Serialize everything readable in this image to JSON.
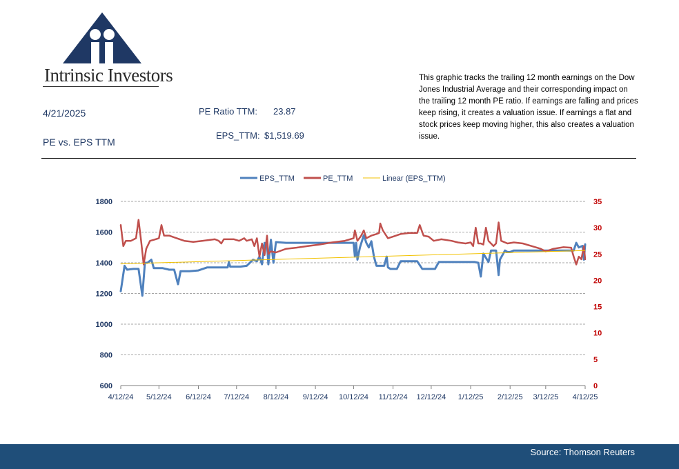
{
  "header": {
    "logo_text": "Intrinsic Investors",
    "date": "4/21/2025",
    "subtitle": "PE vs. EPS TTM",
    "pe_label": "PE Ratio TTM:",
    "pe_value": "23.87",
    "eps_label": "EPS_TTM:",
    "eps_value": "$1,519.69",
    "description": "This graphic tracks the trailing 12 month earnings on the Dow Jones Industrial Average and their corresponding impact on the trailing 12 month PE ratio.  If earnings are falling and prices keep rising, it creates a valuation issue.  If earnings a flat and stock prices keep moving higher, this also creates a valuation issue."
  },
  "footer": {
    "source": "Source: Thomson Reuters"
  },
  "colors": {
    "eps": "#4f81bd",
    "pe": "#c0504d",
    "trend": "#f2c200",
    "axis_left": "#1f3864",
    "axis_right": "#c00000",
    "footer": "#1f4e79"
  },
  "chart_data": {
    "type": "line",
    "x_ticks": [
      "4/12/24",
      "5/12/24",
      "6/12/24",
      "7/12/24",
      "8/12/24",
      "9/12/24",
      "10/12/24",
      "11/12/24",
      "12/12/24",
      "1/12/25",
      "2/12/25",
      "3/12/25",
      "4/12/25"
    ],
    "x_range": [
      "4/12/24",
      "4/12/25"
    ],
    "y_left": {
      "min": 600,
      "max": 1800,
      "ticks": [
        600,
        800,
        1000,
        1200,
        1400,
        1600,
        1800
      ]
    },
    "y_right": {
      "min": 0,
      "max": 35,
      "ticks": [
        0,
        5,
        10,
        15,
        20,
        25,
        30,
        35
      ]
    },
    "grid": "horizontal dashed",
    "legend_position": "top",
    "legend": [
      "EPS_TTM",
      "PE_TTM",
      "Linear (EPS_TTM)"
    ],
    "series": [
      {
        "name": "EPS_TTM",
        "axis": "left",
        "points": [
          [
            "4/12/24",
            1215
          ],
          [
            "4/15/24",
            1380
          ],
          [
            "4/17/24",
            1355
          ],
          [
            "4/22/24",
            1360
          ],
          [
            "4/26/24",
            1360
          ],
          [
            "4/29/24",
            1185
          ],
          [
            "5/1/24",
            1400
          ],
          [
            "5/3/24",
            1400
          ],
          [
            "5/6/24",
            1420
          ],
          [
            "5/8/24",
            1365
          ],
          [
            "5/15/24",
            1365
          ],
          [
            "5/20/24",
            1355
          ],
          [
            "5/24/24",
            1355
          ],
          [
            "5/27/24",
            1260
          ],
          [
            "5/29/24",
            1345
          ],
          [
            "6/5/24",
            1345
          ],
          [
            "6/12/24",
            1350
          ],
          [
            "6/19/24",
            1370
          ],
          [
            "6/28/24",
            1370
          ],
          [
            "7/5/24",
            1370
          ],
          [
            "7/6/24",
            1405
          ],
          [
            "7/7/24",
            1375
          ],
          [
            "7/15/24",
            1375
          ],
          [
            "7/20/24",
            1380
          ],
          [
            "7/25/24",
            1420
          ],
          [
            "7/28/24",
            1410
          ],
          [
            "7/30/24",
            1440
          ],
          [
            "8/1/24",
            1390
          ],
          [
            "8/3/24",
            1530
          ],
          [
            "8/5/24",
            1520
          ],
          [
            "8/6/24",
            1390
          ],
          [
            "8/8/24",
            1550
          ],
          [
            "8/10/24",
            1400
          ],
          [
            "8/12/24",
            1535
          ],
          [
            "8/20/24",
            1530
          ],
          [
            "9/1/24",
            1530
          ],
          [
            "10/12/24",
            1530
          ],
          [
            "10/13/24",
            1440
          ],
          [
            "10/14/24",
            1530
          ],
          [
            "10/15/24",
            1420
          ],
          [
            "10/17/24",
            1500
          ],
          [
            "10/20/24",
            1580
          ],
          [
            "10/22/24",
            1530
          ],
          [
            "10/24/24",
            1500
          ],
          [
            "10/26/24",
            1540
          ],
          [
            "10/28/24",
            1440
          ],
          [
            "10/30/24",
            1380
          ],
          [
            "11/5/24",
            1380
          ],
          [
            "11/7/24",
            1440
          ],
          [
            "11/8/24",
            1370
          ],
          [
            "11/10/24",
            1360
          ],
          [
            "11/15/24",
            1360
          ],
          [
            "11/18/24",
            1410
          ],
          [
            "12/1/24",
            1410
          ],
          [
            "12/5/24",
            1360
          ],
          [
            "12/15/24",
            1360
          ],
          [
            "12/18/24",
            1405
          ],
          [
            "1/12/25",
            1405
          ],
          [
            "1/15/25",
            1405
          ],
          [
            "1/18/25",
            1400
          ],
          [
            "1/20/25",
            1310
          ],
          [
            "1/22/25",
            1460
          ],
          [
            "1/26/25",
            1405
          ],
          [
            "1/28/25",
            1480
          ],
          [
            "2/1/25",
            1480
          ],
          [
            "2/3/25",
            1320
          ],
          [
            "2/4/25",
            1420
          ],
          [
            "2/8/25",
            1480
          ],
          [
            "2/10/25",
            1470
          ],
          [
            "2/12/25",
            1470
          ],
          [
            "2/15/25",
            1480
          ],
          [
            "3/12/25",
            1480
          ],
          [
            "4/1/25",
            1480
          ],
          [
            "4/3/25",
            1480
          ],
          [
            "4/5/25",
            1530
          ],
          [
            "4/7/25",
            1500
          ],
          [
            "4/10/25",
            1510
          ],
          [
            "4/11/25",
            1420
          ],
          [
            "4/12/25",
            1520
          ]
        ]
      },
      {
        "name": "PE_TTM",
        "axis": "right",
        "points": [
          [
            "4/12/24",
            30.5
          ],
          [
            "4/14/24",
            26.5
          ],
          [
            "4/16/24",
            27.5
          ],
          [
            "4/20/24",
            27.5
          ],
          [
            "4/24/24",
            28.0
          ],
          [
            "4/26/24",
            31.5
          ],
          [
            "4/28/24",
            27.5
          ],
          [
            "4/30/24",
            23.0
          ],
          [
            "5/2/24",
            26.0
          ],
          [
            "5/5/24",
            27.5
          ],
          [
            "5/8/24",
            27.7
          ],
          [
            "5/12/24",
            28.0
          ],
          [
            "5/14/24",
            30.5
          ],
          [
            "5/16/24",
            28.5
          ],
          [
            "5/20/24",
            28.5
          ],
          [
            "5/26/24",
            28.0
          ],
          [
            "6/1/24",
            27.5
          ],
          [
            "6/8/24",
            27.3
          ],
          [
            "6/15/24",
            27.5
          ],
          [
            "6/25/24",
            27.8
          ],
          [
            "6/28/24",
            27.5
          ],
          [
            "6/30/24",
            27.0
          ],
          [
            "7/2/24",
            27.8
          ],
          [
            "7/10/24",
            27.8
          ],
          [
            "7/14/24",
            27.5
          ],
          [
            "7/18/24",
            28.0
          ],
          [
            "7/20/24",
            27.5
          ],
          [
            "7/24/24",
            27.8
          ],
          [
            "7/26/24",
            26.5
          ],
          [
            "7/28/24",
            28.0
          ],
          [
            "7/30/24",
            24.5
          ],
          [
            "8/1/24",
            27.0
          ],
          [
            "8/3/24",
            24.8
          ],
          [
            "8/5/24",
            28.5
          ],
          [
            "8/6/24",
            25.0
          ],
          [
            "8/8/24",
            25.5
          ],
          [
            "8/12/24",
            25.3
          ],
          [
            "8/20/24",
            26.0
          ],
          [
            "8/28/24",
            26.2
          ],
          [
            "9/6/24",
            26.5
          ],
          [
            "9/15/24",
            26.8
          ],
          [
            "9/25/24",
            27.2
          ],
          [
            "10/5/24",
            27.5
          ],
          [
            "10/12/24",
            28.0
          ],
          [
            "10/13/24",
            29.5
          ],
          [
            "10/15/24",
            27.5
          ],
          [
            "10/18/24",
            28.5
          ],
          [
            "10/20/24",
            29.5
          ],
          [
            "10/22/24",
            28.0
          ],
          [
            "10/26/24",
            28.5
          ],
          [
            "10/30/24",
            28.8
          ],
          [
            "11/1/24",
            29.0
          ],
          [
            "11/2/24",
            30.8
          ],
          [
            "11/4/24",
            29.5
          ],
          [
            "11/8/24",
            28.0
          ],
          [
            "11/12/24",
            28.3
          ],
          [
            "11/18/24",
            28.8
          ],
          [
            "11/25/24",
            29.0
          ],
          [
            "12/1/24",
            29.0
          ],
          [
            "12/3/24",
            30.5
          ],
          [
            "12/6/24",
            28.5
          ],
          [
            "12/10/24",
            28.3
          ],
          [
            "12/14/24",
            27.5
          ],
          [
            "12/20/24",
            27.8
          ],
          [
            "12/28/24",
            27.5
          ],
          [
            "1/2/25",
            27.2
          ],
          [
            "1/8/25",
            27.0
          ],
          [
            "1/12/25",
            27.2
          ],
          [
            "1/14/25",
            26.5
          ],
          [
            "1/16/25",
            30.0
          ],
          [
            "1/18/25",
            27.0
          ],
          [
            "1/20/25",
            27.0
          ],
          [
            "1/22/25",
            26.8
          ],
          [
            "1/24/25",
            30.0
          ],
          [
            "1/26/25",
            27.5
          ],
          [
            "1/30/25",
            26.5
          ],
          [
            "2/1/25",
            27.0
          ],
          [
            "2/3/25",
            31.0
          ],
          [
            "2/5/25",
            27.5
          ],
          [
            "2/10/25",
            27.0
          ],
          [
            "2/15/25",
            27.2
          ],
          [
            "2/22/25",
            27.0
          ],
          [
            "3/1/25",
            26.5
          ],
          [
            "3/8/25",
            26.0
          ],
          [
            "3/12/25",
            25.5
          ],
          [
            "3/18/25",
            26.0
          ],
          [
            "3/26/25",
            26.3
          ],
          [
            "4/1/25",
            26.2
          ],
          [
            "4/3/25",
            24.5
          ],
          [
            "4/5/25",
            23.0
          ],
          [
            "4/7/25",
            24.5
          ],
          [
            "4/9/25",
            24.0
          ],
          [
            "4/11/25",
            26.5
          ],
          [
            "4/12/25",
            24.0
          ]
        ]
      },
      {
        "name": "Linear (EPS_TTM)",
        "axis": "left",
        "type": "trendline",
        "points": [
          [
            "4/12/24",
            1393
          ],
          [
            "4/12/25",
            1480
          ]
        ]
      }
    ]
  }
}
